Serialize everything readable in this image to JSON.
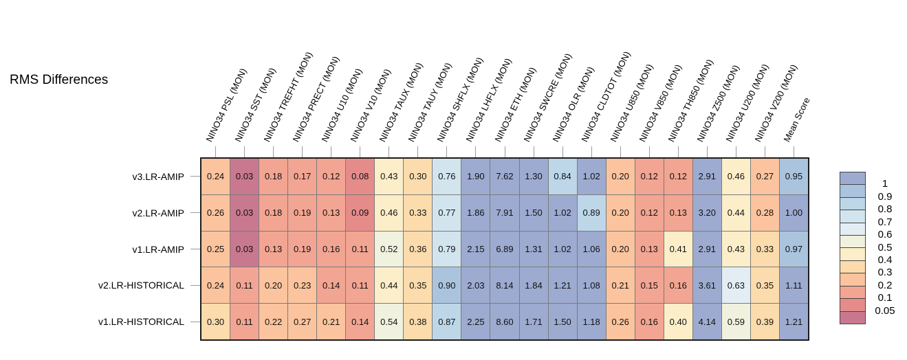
{
  "title": "RMS Differences",
  "chart_data": {
    "type": "heatmap",
    "title": "RMS Differences",
    "columns": [
      "NINO34 PSL (MON)",
      "NINO34 SST (MON)",
      "NINO34 TREFHT (MON)",
      "NINO34 PRECT (MON)",
      "NINO34 U10 (MON)",
      "NINO34 V10 (MON)",
      "NINO34 TAUX (MON)",
      "NINO34 TAUY (MON)",
      "NINO34 SHFLX (MON)",
      "NINO34 LHFLX (MON)",
      "NINO34 ETH (MON)",
      "NINO34 SWCRE (MON)",
      "NINO34 OLR (MON)",
      "NINO34 CLDTOT (MON)",
      "NINO34 U850 (MON)",
      "NINO34 V850 (MON)",
      "NINO34 TH850 (MON)",
      "NINO34 Z500 (MON)",
      "NINO34 U200 (MON)",
      "NINO34 V200 (MON)",
      "Mean Score"
    ],
    "rows": [
      "v3.LR-AMIP",
      "v2.LR-AMIP",
      "v1.LR-AMIP",
      "v2.LR-HISTORICAL",
      "v1.LR-HISTORICAL"
    ],
    "values": [
      [
        0.24,
        0.03,
        0.18,
        0.17,
        0.12,
        0.08,
        0.43,
        0.3,
        0.76,
        1.9,
        7.62,
        1.3,
        0.84,
        1.02,
        0.2,
        0.12,
        0.12,
        2.91,
        0.46,
        0.27,
        0.95
      ],
      [
        0.26,
        0.03,
        0.18,
        0.19,
        0.13,
        0.09,
        0.46,
        0.33,
        0.77,
        1.86,
        7.91,
        1.5,
        1.02,
        0.89,
        0.2,
        0.12,
        0.13,
        3.2,
        0.44,
        0.28,
        1.0
      ],
      [
        0.25,
        0.03,
        0.13,
        0.19,
        0.16,
        0.11,
        0.52,
        0.36,
        0.79,
        2.15,
        6.89,
        1.31,
        1.02,
        1.06,
        0.2,
        0.13,
        0.41,
        2.91,
        0.43,
        0.33,
        0.97
      ],
      [
        0.24,
        0.11,
        0.2,
        0.23,
        0.14,
        0.11,
        0.44,
        0.35,
        0.9,
        2.03,
        8.14,
        1.84,
        1.21,
        1.08,
        0.21,
        0.15,
        0.16,
        3.61,
        0.63,
        0.35,
        1.11
      ],
      [
        0.3,
        0.11,
        0.22,
        0.27,
        0.21,
        0.14,
        0.54,
        0.38,
        0.87,
        2.25,
        8.6,
        1.71,
        1.5,
        1.18,
        0.26,
        0.16,
        0.4,
        4.14,
        0.59,
        0.39,
        1.21
      ]
    ],
    "value_decimals": 2,
    "colorbar": {
      "position": "right",
      "tick_labels": [
        "1",
        "0.9",
        "0.8",
        "0.7",
        "0.6",
        "0.5",
        "0.4",
        "0.3",
        "0.2",
        "0.1",
        "0.05"
      ],
      "thresholds_high_to_low": [
        1.0,
        0.9,
        0.8,
        0.7,
        0.6,
        0.5,
        0.4,
        0.3,
        0.2,
        0.1,
        0.05
      ],
      "band_colors_high_to_low": [
        "#9dabd1",
        "#aac4de",
        "#bdd7e9",
        "#d2e5ef",
        "#e3eef4",
        "#f0f1de",
        "#fbeec9",
        "#fcdcad",
        "#fbc49e",
        "#f2a592",
        "#e58c8b",
        "#c9798f"
      ]
    },
    "grid": true
  }
}
